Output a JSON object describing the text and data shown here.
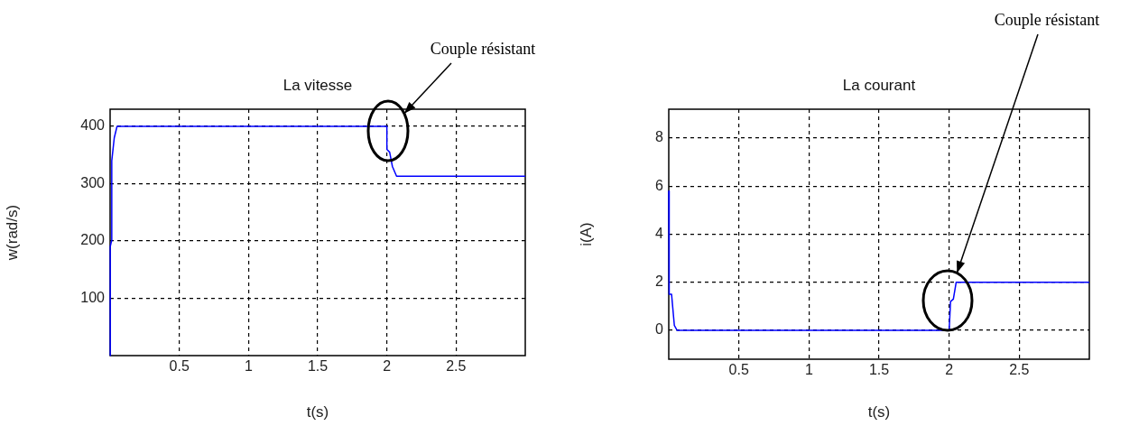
{
  "chart_data": [
    {
      "type": "line",
      "title": "La vitesse",
      "xlabel": "t(s)",
      "ylabel": "w(rad/s)",
      "xlim": [
        0,
        3
      ],
      "xticks": [
        0.5,
        1,
        1.5,
        2,
        2.5
      ],
      "ylim": [
        0,
        430
      ],
      "yticks": [
        100,
        200,
        300,
        400
      ],
      "grid": true,
      "x": [
        0,
        0,
        0.002,
        0.01,
        0.012,
        0.03,
        0.05,
        2.0,
        2.0,
        2.02,
        2.04,
        2.07,
        3.0
      ],
      "series": [
        {
          "color": "#0000ff",
          "values": [
            0,
            0,
            190,
            200,
            340,
            380,
            400,
            400,
            360,
            355,
            330,
            313,
            313
          ]
        }
      ],
      "annotations": [
        "Couple résistant"
      ]
    },
    {
      "type": "line",
      "title": "La courant",
      "xlabel": "t(s)",
      "ylabel": "i(A)",
      "xlim": [
        0,
        3
      ],
      "xticks": [
        0.5,
        1,
        1.5,
        2,
        2.5
      ],
      "ylim": [
        -1.2,
        9.2
      ],
      "yticks": [
        0,
        2,
        4,
        6,
        8
      ],
      "grid": true,
      "x": [
        0,
        0.003,
        0.02,
        0.04,
        0.06,
        2.0,
        2.01,
        2.03,
        2.05,
        3.0
      ],
      "series": [
        {
          "color": "#0000ff",
          "values": [
            5.8,
            1.5,
            1.5,
            0.2,
            0,
            0,
            1.2,
            1.3,
            2,
            2
          ]
        }
      ],
      "annotations": [
        "Couple résistant"
      ]
    }
  ]
}
